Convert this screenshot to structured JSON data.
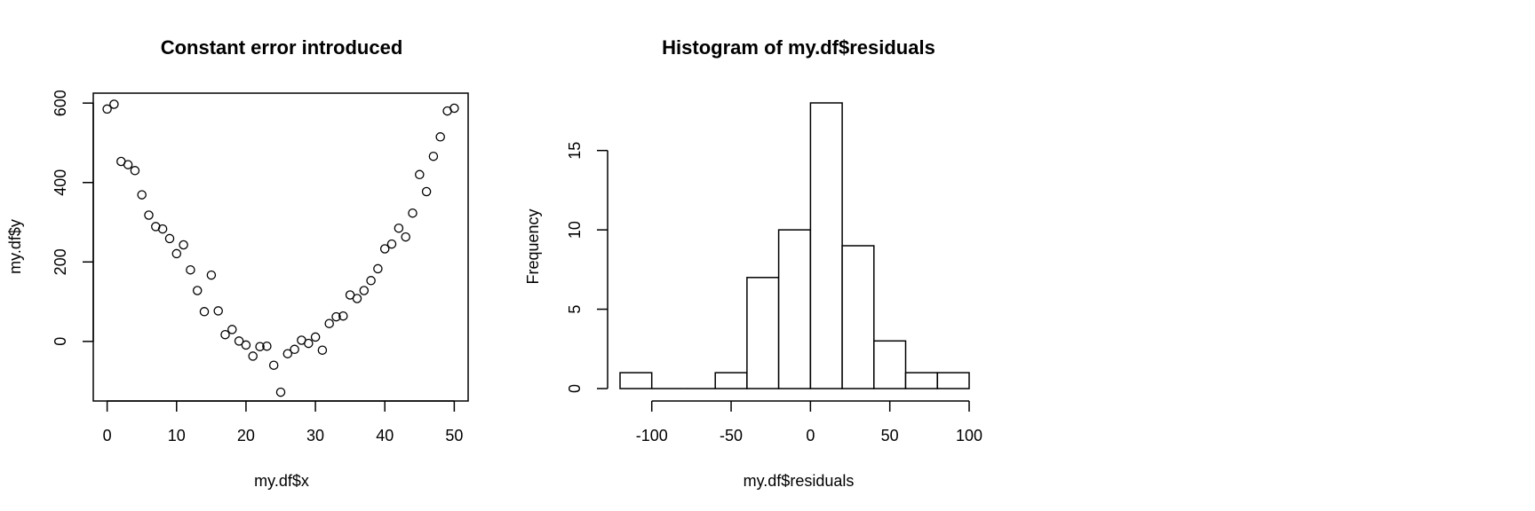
{
  "chart_data": [
    {
      "type": "scatter",
      "title": "Constant error introduced",
      "xlabel": "my.df$x",
      "ylabel": "my.df$y",
      "xlim": [
        -2,
        52
      ],
      "ylim": [
        -150,
        625
      ],
      "xticks": [
        0,
        10,
        20,
        30,
        40,
        50
      ],
      "yticks": [
        0,
        200,
        400,
        600
      ],
      "x": [
        0,
        1,
        2,
        3,
        4,
        5,
        6,
        7,
        8,
        9,
        10,
        11,
        12,
        13,
        14,
        15,
        16,
        17,
        18,
        19,
        20,
        21,
        22,
        23,
        24,
        25,
        26,
        27,
        28,
        29,
        30,
        31,
        32,
        33,
        34,
        35,
        36,
        37,
        38,
        39,
        40,
        41,
        42,
        43,
        44,
        45,
        46,
        47,
        48,
        49,
        50
      ],
      "y": [
        585,
        597,
        453,
        445,
        430,
        369,
        318,
        289,
        283,
        259,
        221,
        243,
        180,
        128,
        75,
        167,
        77,
        17,
        30,
        1,
        -9,
        -37,
        -13,
        -12,
        -60,
        -128,
        -31,
        -20,
        3,
        -5,
        11,
        -22,
        45,
        62,
        64,
        117,
        108,
        128,
        153,
        183,
        233,
        245,
        285,
        263,
        323,
        420,
        377,
        466,
        515,
        580,
        587
      ],
      "grid": false
    },
    {
      "type": "bar",
      "title": "Histogram of my.df$residuals",
      "xlabel": "my.df$residuals",
      "ylabel": "Frequency",
      "bin_edges": [
        -120,
        -100,
        -80,
        -60,
        -40,
        -20,
        0,
        20,
        40,
        60,
        80,
        100
      ],
      "values": [
        1,
        0,
        0,
        1,
        7,
        10,
        18,
        9,
        3,
        1,
        1
      ],
      "xlim": [
        -120,
        100
      ],
      "ylim": [
        0,
        18
      ],
      "xticks": [
        -100,
        -50,
        0,
        50,
        100
      ],
      "yticks": [
        0,
        5,
        10,
        15
      ],
      "grid": false
    }
  ]
}
